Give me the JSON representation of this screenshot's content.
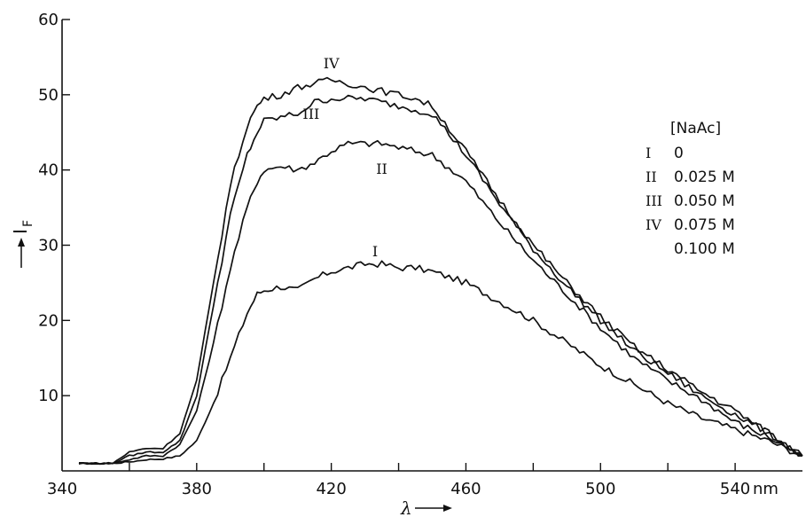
{
  "chart_data": {
    "type": "line",
    "xlabel": "λ",
    "ylabel": "I",
    "ylabel_subscript": "F",
    "x_unit": "nm",
    "xlim": [
      340,
      560
    ],
    "ylim": [
      0,
      60
    ],
    "x_ticks": [
      340,
      380,
      420,
      460,
      500,
      540
    ],
    "y_ticks": [
      10,
      20,
      30,
      40,
      50,
      60
    ],
    "legend": {
      "title": "[NaAc]",
      "entries": [
        {
          "mark": "I",
          "text": "0"
        },
        {
          "mark": "II",
          "text": "0.025 M"
        },
        {
          "mark": "III",
          "text": "0.050 M"
        },
        {
          "mark": "IV",
          "text": "0.075 M"
        },
        {
          "mark": "",
          "text": "0.100 M"
        }
      ]
    },
    "series": [
      {
        "name": "I",
        "x": [
          345,
          355,
          360,
          365,
          370,
          375,
          380,
          385,
          390,
          395,
          398,
          400,
          405,
          410,
          415,
          420,
          425,
          430,
          435,
          440,
          445,
          450,
          460,
          470,
          480,
          490,
          500,
          510,
          520,
          530,
          540,
          550,
          560
        ],
        "y": [
          1,
          1,
          1.2,
          1.5,
          1.6,
          2,
          4,
          9,
          15,
          21,
          23.5,
          24,
          24.5,
          24,
          25.5,
          26.5,
          27,
          27.5,
          27.5,
          27,
          27,
          26.5,
          25,
          22.5,
          20,
          17,
          14,
          11.5,
          9,
          7,
          5.5,
          4,
          2
        ]
      },
      {
        "name": "II",
        "x": [
          345,
          355,
          360,
          365,
          370,
          375,
          380,
          385,
          390,
          395,
          398,
          400,
          405,
          410,
          415,
          420,
          425,
          430,
          435,
          440,
          445,
          450,
          460,
          470,
          480,
          490,
          500,
          510,
          520,
          530,
          540,
          550,
          560
        ],
        "y": [
          1,
          1,
          1.5,
          2,
          2,
          3.5,
          8,
          17,
          27,
          35,
          38.5,
          40,
          40.5,
          40,
          41,
          42.5,
          43.5,
          43.5,
          43.5,
          43,
          42.5,
          42,
          38.5,
          33,
          28,
          23.5,
          19,
          15,
          12,
          9.5,
          6.5,
          4.5,
          2
        ]
      },
      {
        "name": "III",
        "x": [
          345,
          355,
          360,
          365,
          370,
          375,
          380,
          385,
          390,
          395,
          398,
          400,
          405,
          410,
          415,
          420,
          425,
          430,
          435,
          440,
          445,
          450,
          460,
          470,
          480,
          490,
          500,
          510,
          520,
          530,
          540,
          550,
          560
        ],
        "y": [
          1,
          1,
          2,
          2.5,
          2.5,
          4,
          10,
          22,
          34,
          42,
          45,
          46.5,
          47,
          47.5,
          49,
          49.5,
          49.5,
          49.5,
          49,
          48.5,
          48,
          47.5,
          42,
          35.5,
          29.5,
          24.5,
          20,
          16,
          13,
          10,
          7.5,
          5,
          2
        ]
      },
      {
        "name": "IV",
        "x": [
          345,
          355,
          360,
          365,
          370,
          375,
          380,
          385,
          390,
          395,
          398,
          400,
          405,
          410,
          415,
          420,
          425,
          430,
          435,
          440,
          445,
          450,
          460,
          470,
          480,
          490,
          500,
          510,
          520,
          530,
          540,
          550,
          560
        ],
        "y": [
          1,
          1,
          2.5,
          3,
          3,
          5,
          12,
          25,
          38,
          46,
          48.5,
          49.5,
          50,
          51,
          51.5,
          52,
          51.5,
          51,
          50.5,
          50,
          49.5,
          48.5,
          42.5,
          36,
          30,
          25,
          20.5,
          16.5,
          13.5,
          10.5,
          8,
          5,
          2
        ]
      }
    ],
    "curve_labels": [
      {
        "text": "I",
        "x": 433,
        "y": 28.5
      },
      {
        "text": "II",
        "x": 435,
        "y": 39.5
      },
      {
        "text": "III",
        "x": 414,
        "y": 46.8
      },
      {
        "text": "IV",
        "x": 420,
        "y": 53.5
      }
    ]
  }
}
